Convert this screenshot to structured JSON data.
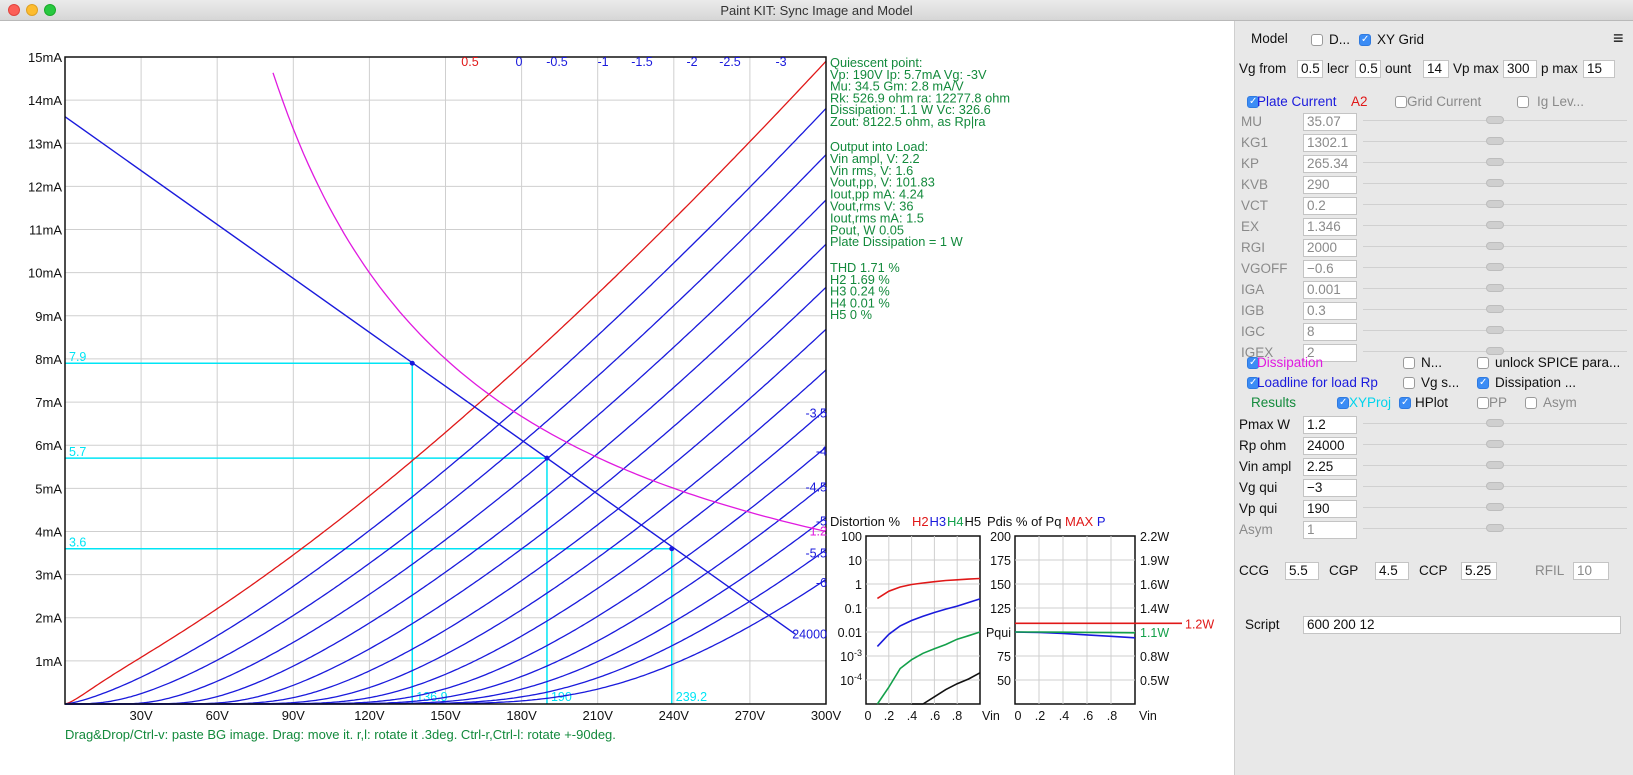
{
  "window": {
    "title": "Paint KIT: Sync Image and Model"
  },
  "plot": {
    "y_ticks": [
      "1mA",
      "2mA",
      "3mA",
      "4mA",
      "5mA",
      "6mA",
      "7mA",
      "8mA",
      "9mA",
      "10mA",
      "11mA",
      "12mA",
      "13mA",
      "14mA",
      "15mA"
    ],
    "x_ticks": [
      "30V",
      "60V",
      "90V",
      "120V",
      "150V",
      "180V",
      "210V",
      "240V",
      "270V",
      "300V"
    ],
    "grid_curve_labels_top": [
      "0.5",
      "0",
      "-0.5",
      "-1",
      "-1.5",
      "-2",
      "-2.5",
      "-3"
    ],
    "grid_curve_labels_right": [
      {
        "label": "-3.5",
        "vg": -3.5
      },
      {
        "label": "-4",
        "vg": -4
      },
      {
        "label": "-4.5",
        "vg": -4.5
      },
      {
        "label": "-5",
        "vg": -5
      },
      {
        "label": "-5.5",
        "vg": -5.5
      },
      {
        "label": "-6",
        "vg": -6
      }
    ],
    "dissipation_label": "1.2",
    "loadline_label": "24000",
    "proj_left": [
      "7.9",
      "5.7",
      "3.6"
    ],
    "proj_bottom": [
      "136.9",
      "190",
      "239.2"
    ],
    "footer_hint": "Drag&Drop/Ctrl-v: paste BG image. Drag: move it. r,l: rotate it .3deg. Ctrl-r,Ctrl-l: rotate +-90deg.",
    "colors": {
      "grid_curves": "#1a1adc",
      "positive_curve": "#e01818",
      "dissipation": "#e01ae0",
      "projection": "#00e5f5",
      "info_text": "#138a3c"
    }
  },
  "info": {
    "quiescent": [
      "Quiescent point:",
      "Vp: 190V  Ip: 5.7mA  Vg: -3V",
      "Mu: 34.5 Gm: 2.8 mA/V",
      "Rk: 526.9 ohm ra: 12277.8 ohm",
      "Dissipation: 1.1 W Vc: 326.6",
      "Zout: 8122.5 ohm, as Rp|ra"
    ],
    "output": [
      "Output into Load:",
      "Vin ampl, V: 2.2",
      "Vin rms,  V: 1.6",
      "Vout,pp,   V: 101.83",
      "Iout,pp   mA: 4.24",
      "Vout,rms   V: 36",
      "Iout,rms  mA: 1.5",
      "Pout, W      0.05",
      "Plate Dissipation = 1 W"
    ],
    "distortion": [
      "THD 1.71 %",
      "   H2 1.69 %",
      "   H3 0.24 %",
      "   H4 0.01 %",
      "   H5 0 %"
    ]
  },
  "mini_distortion": {
    "title_prefix": "Distortion %",
    "legend": [
      {
        "text": "H2",
        "color": "#e01818"
      },
      {
        "text": "H3",
        "color": "#1a1adc"
      },
      {
        "text": "H4",
        "color": "#13a04a"
      },
      {
        "text": "H5",
        "color": "#111111"
      }
    ],
    "y_ticks": [
      "100",
      "10",
      "1",
      "0.1",
      "0.01",
      "10^-3",
      "10^-4"
    ],
    "x_ticks": [
      "0",
      ".2",
      ".4",
      ".6",
      ".8",
      "Vin"
    ],
    "chart_data": {
      "type": "line",
      "x": [
        0.1,
        0.2,
        0.3,
        0.4,
        0.5,
        0.6,
        0.7,
        0.8,
        0.9,
        1.0
      ],
      "ylog": true,
      "ylim": [
        1e-05,
        100
      ],
      "series": [
        {
          "name": "H2",
          "values": [
            0.25,
            0.5,
            0.75,
            0.95,
            1.1,
            1.25,
            1.4,
            1.5,
            1.6,
            1.7
          ]
        },
        {
          "name": "H3",
          "values": [
            0.0025,
            0.008,
            0.018,
            0.03,
            0.045,
            0.065,
            0.09,
            0.12,
            0.17,
            0.24
          ]
        },
        {
          "name": "H4",
          "values": [
            5e-06,
            5e-05,
            0.0003,
            0.0007,
            0.0013,
            0.002,
            0.003,
            0.005,
            0.007,
            0.01
          ]
        },
        {
          "name": "H5",
          "values": [
            null,
            null,
            null,
            6e-06,
            1e-05,
            2e-05,
            4e-05,
            7e-05,
            0.00011,
            0.0002
          ]
        }
      ]
    }
  },
  "mini_pdis": {
    "title_prefix": "Pdis % of Pq",
    "title_max": "MAX",
    "title_p": "P",
    "y_ticks_left": [
      "200",
      "175",
      "150",
      "125",
      "Pqui",
      "75",
      "50"
    ],
    "y_ticks_right": [
      "2.2W",
      "1.9W",
      "1.6W",
      "1.4W",
      "1.1W",
      "0.8W",
      "0.5W"
    ],
    "max_label": "1.2W",
    "x_ticks": [
      "0",
      ".2",
      ".4",
      ".6",
      ".8",
      "Vin"
    ],
    "chart_data": {
      "type": "line",
      "x": [
        0,
        0.2,
        0.4,
        0.6,
        0.8,
        1.0
      ],
      "ylim": [
        25,
        200
      ],
      "series": [
        {
          "name": "MAX",
          "values": [
            109,
            109,
            109,
            109,
            109,
            109
          ]
        },
        {
          "name": "P",
          "values": [
            100,
            99.5,
            98.5,
            97,
            95.5,
            94
          ]
        },
        {
          "name": "",
          "values": [
            100,
            100,
            99.8,
            99.6,
            99.4,
            99.2
          ]
        }
      ]
    }
  },
  "panel": {
    "model_label": "Model",
    "d_label": "D...",
    "xy_grid_label": "XY Grid",
    "vg_from_label": "Vg from",
    "vg_from_val": "0.5",
    "decr_label": "lecr",
    "decr_val": "0.5",
    "count_label": "ount",
    "count_val": "14",
    "vpmax_label": "Vp max",
    "vpmax_val": "300",
    "pmax_label": "p max",
    "pmax_val": "15",
    "plate_current_label": "Plate Current",
    "a2_label": "A2",
    "grid_current_label": "Grid Current",
    "ig_lev_label": "Ig Lev...",
    "params": [
      {
        "name": "MU",
        "value": "35.07"
      },
      {
        "name": "KG1",
        "value": "1302.1"
      },
      {
        "name": "KP",
        "value": "265.34"
      },
      {
        "name": "KVB",
        "value": "290"
      },
      {
        "name": "VCT",
        "value": "0.2"
      },
      {
        "name": "EX",
        "value": "1.346"
      },
      {
        "name": "RGI",
        "value": "2000"
      },
      {
        "name": "VGOFF",
        "value": "−0.6"
      },
      {
        "name": "IGA",
        "value": "0.001"
      },
      {
        "name": "IGB",
        "value": "0.3"
      },
      {
        "name": "IGC",
        "value": "8"
      },
      {
        "name": "IGEX",
        "value": "2"
      }
    ],
    "dissipation_label": "Dissipation",
    "n_label": "N...",
    "unlock_label": "unlock SPICE para...",
    "loadline_label": "Loadline for load Rp",
    "vg_s_label": "Vg s...",
    "dissipation2_label": "Dissipation ...",
    "results_label": "Results",
    "xyproj_label": "XYProj",
    "hplot_label": "HPlot",
    "pp_label": "PP",
    "asym_label": "Asym",
    "load_params": [
      {
        "name": "Pmax W",
        "value": "1.2"
      },
      {
        "name": "Rp ohm",
        "value": "24000"
      },
      {
        "name": "Vin ampl",
        "value": "2.25"
      },
      {
        "name": "Vg qui",
        "value": "−3"
      },
      {
        "name": "Vp qui",
        "value": "190"
      },
      {
        "name": "Asym",
        "value": "1"
      }
    ],
    "ccg_label": "CCG",
    "ccg_val": "5.5",
    "cgp_label": "CGP",
    "cgp_val": "4.5",
    "ccp_label": "CCP",
    "ccp_val": "5.25",
    "rfil_label": "RFIL",
    "rfil_val": "10",
    "script_label": "Script",
    "script_val": "600 200 12"
  }
}
